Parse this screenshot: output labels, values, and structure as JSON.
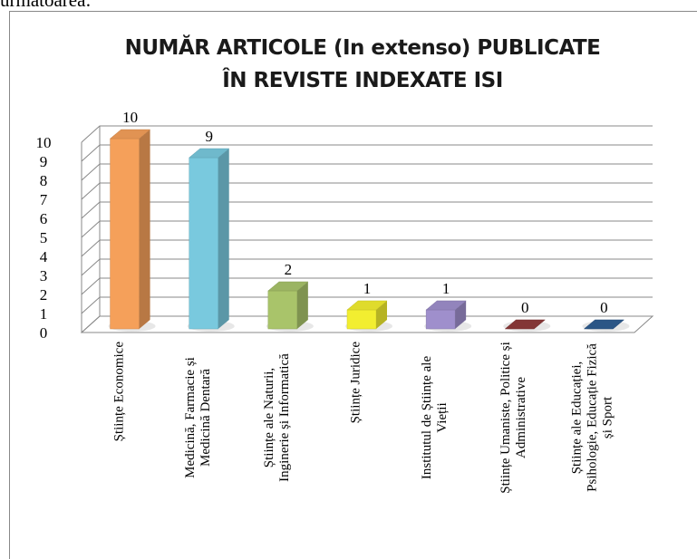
{
  "intro_text": "următoarea:",
  "chart_data": {
    "type": "bar3d",
    "title": "NUMĂR ARTICOLE (In extenso) PUBLICATE",
    "subtitle": "ÎN REVISTE INDEXATE ISI",
    "categories": [
      "Științe Economice",
      "Medicină, Farmacie și Medicină Dentară",
      "Științe ale Naturii, Inginerie și Informatică",
      "Științe Juridice",
      "Institutul de Științe ale Vieții",
      "Științe Umaniste, Politice și Administrative",
      "Științe ale Educației, Psihologie, Educație Fizică și Sport"
    ],
    "values": [
      10,
      9,
      2,
      1,
      1,
      0,
      0
    ],
    "colors": [
      "#f5a05a",
      "#79c9de",
      "#a9c46a",
      "#f2ee30",
      "#9f8fcc",
      "#8e3b3b",
      "#2f5d92"
    ],
    "ylim": [
      0,
      10
    ],
    "yticks": [
      0,
      1,
      2,
      3,
      4,
      5,
      6,
      7,
      8,
      9,
      10
    ],
    "grid": true
  }
}
